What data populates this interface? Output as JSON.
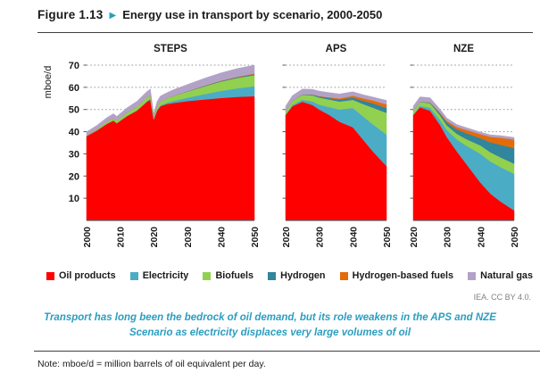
{
  "header": {
    "figure_label": "Figure 1.13",
    "arrow_icon": "▶",
    "title": "Energy use in transport by scenario, 2000-2050"
  },
  "colors": {
    "accent_teal": "#2B9EC0",
    "oil": "#FE0000",
    "electricity": "#4BACC6",
    "biofuels": "#92D050",
    "hydrogen": "#31859C",
    "hydrogen_based_fuels": "#E36C09",
    "natural_gas": "#B3A2C7",
    "gridline": "#969696",
    "axis": "#595959"
  },
  "legend": [
    {
      "label": "Oil products",
      "color": "#FE0000"
    },
    {
      "label": "Electricity",
      "color": "#4BACC6"
    },
    {
      "label": "Biofuels",
      "color": "#92D050"
    },
    {
      "label": "Hydrogen",
      "color": "#31859C"
    },
    {
      "label": "Hydrogen-based fuels",
      "color": "#E36C09"
    },
    {
      "label": "Natural gas",
      "color": "#B3A2C7"
    }
  ],
  "source": "IEA. CC BY 4.0.",
  "lede_lines": [
    "Transport has long been the bedrock of oil demand, but its role weakens in the APS and NZE",
    "Scenario as electricity displaces very large volumes of oil"
  ],
  "note": "Note: mboe/d = million barrels of oil equivalent per day.",
  "chart_data": [
    {
      "type": "area",
      "stacked": true,
      "title": "STEPS",
      "ylabel": "mboe/d",
      "ylim": [
        0,
        73
      ],
      "yticks": [
        10,
        20,
        30,
        40,
        50,
        60,
        70
      ],
      "xticks": [
        2000,
        2010,
        2020,
        2030,
        2040,
        2050
      ],
      "x": [
        2000,
        2003,
        2006,
        2008,
        2009,
        2012,
        2015,
        2018,
        2019,
        2020,
        2021,
        2022,
        2024,
        2026,
        2030,
        2035,
        2040,
        2045,
        2050
      ],
      "series": [
        {
          "name": "Oil products",
          "color": "#FE0000",
          "values": [
            38,
            40.5,
            43.5,
            45,
            43.8,
            47,
            49.5,
            53.5,
            54.5,
            45.5,
            49.5,
            51.5,
            52.5,
            53,
            53.8,
            54.5,
            55.2,
            55.7,
            56
          ]
        },
        {
          "name": "Electricity",
          "color": "#4BACC6",
          "values": [
            0.05,
            0.05,
            0.1,
            0.1,
            0.1,
            0.15,
            0.2,
            0.25,
            0.3,
            0.3,
            0.35,
            0.4,
            0.6,
            0.9,
            1.5,
            2.4,
            3.2,
            3.9,
            4.5
          ]
        },
        {
          "name": "Biofuels",
          "color": "#92D050",
          "values": [
            0.3,
            0.5,
            0.8,
            1,
            1.1,
            1.4,
            1.6,
            1.8,
            1.8,
            0.9,
            1.6,
            1.8,
            2,
            2.3,
            2.8,
            3.5,
            4.2,
            4.7,
            5
          ]
        },
        {
          "name": "Hydrogen",
          "color": "#31859C",
          "values": [
            0,
            0,
            0,
            0,
            0,
            0,
            0,
            0,
            0,
            0,
            0,
            0,
            0.02,
            0.05,
            0.1,
            0.2,
            0.25,
            0.3,
            0.4
          ]
        },
        {
          "name": "Hydrogen-based fuels",
          "color": "#E36C09",
          "values": [
            0,
            0,
            0,
            0,
            0,
            0,
            0,
            0,
            0,
            0,
            0,
            0,
            0,
            0.02,
            0.05,
            0.1,
            0.15,
            0.2,
            0.3
          ]
        },
        {
          "name": "Natural gas",
          "color": "#B3A2C7",
          "values": [
            1.6,
            1.7,
            1.9,
            2,
            1.9,
            2.2,
            2.4,
            2.6,
            2.6,
            1.4,
            2.2,
            2.4,
            2.5,
            2.7,
            3,
            3.3,
            3.5,
            3.7,
            3.8
          ]
        }
      ]
    },
    {
      "type": "area",
      "stacked": true,
      "title": "APS",
      "ylim": [
        0,
        73
      ],
      "yticks": [
        10,
        20,
        30,
        40,
        50,
        60,
        70
      ],
      "xticks": [
        2020,
        2030,
        2040,
        2050
      ],
      "x": [
        2020,
        2022,
        2025,
        2028,
        2030,
        2033,
        2036,
        2040,
        2043,
        2046,
        2050
      ],
      "series": [
        {
          "name": "Oil products",
          "color": "#FE0000",
          "values": [
            47.5,
            51.5,
            53.5,
            52,
            50,
            47.5,
            44.5,
            42,
            36.5,
            31,
            24.5
          ]
        },
        {
          "name": "Electricity",
          "color": "#4BACC6",
          "values": [
            0.3,
            0.5,
            0.9,
            1.6,
            2.2,
            3.6,
            5.5,
            8.7,
            10.5,
            12.3,
            14.2
          ]
        },
        {
          "name": "Biofuels",
          "color": "#92D050",
          "values": [
            1.5,
            1.9,
            2.3,
            2.8,
            3.2,
            3.4,
            3.6,
            3.7,
            5.5,
            7.5,
            9.8
          ]
        },
        {
          "name": "Hydrogen",
          "color": "#31859C",
          "values": [
            0,
            0.05,
            0.15,
            0.3,
            0.5,
            0.7,
            0.9,
            1,
            1.5,
            2,
            2.2
          ]
        },
        {
          "name": "Hydrogen-based fuels",
          "color": "#E36C09",
          "values": [
            0,
            0,
            0.05,
            0.1,
            0.2,
            0.3,
            0.5,
            0.8,
            1.1,
            1.3,
            1.6
          ]
        },
        {
          "name": "Natural gas",
          "color": "#B3A2C7",
          "values": [
            2.2,
            2.3,
            2.3,
            2.3,
            2.2,
            2.1,
            2,
            1.8,
            1.6,
            1.5,
            1.8
          ]
        }
      ]
    },
    {
      "type": "area",
      "stacked": true,
      "title": "NZE",
      "ylim": [
        0,
        73
      ],
      "yticks": [
        10,
        20,
        30,
        40,
        50,
        60,
        70
      ],
      "xticks": [
        2020,
        2030,
        2040,
        2050
      ],
      "x": [
        2020,
        2022,
        2025,
        2028,
        2030,
        2033,
        2036,
        2040,
        2043,
        2046,
        2050
      ],
      "series": [
        {
          "name": "Oil products",
          "color": "#FE0000",
          "values": [
            47.5,
            51,
            49.5,
            43,
            37.5,
            31,
            25,
            17,
            12,
            8.5,
            4.5
          ]
        },
        {
          "name": "Electricity",
          "color": "#4BACC6",
          "values": [
            0.3,
            0.6,
            1.3,
            2.2,
            3.2,
            5.5,
            8.5,
            13,
            14.5,
            15.5,
            16.5
          ]
        },
        {
          "name": "Biofuels",
          "color": "#92D050",
          "values": [
            1.5,
            1.8,
            2.1,
            2.1,
            2.1,
            2.5,
            3,
            3.8,
            4.2,
            4.4,
            4.6
          ]
        },
        {
          "name": "Hydrogen",
          "color": "#31859C",
          "values": [
            0,
            0.1,
            0.3,
            0.8,
            1.3,
            2,
            2.7,
            3.3,
            4.5,
            5.7,
            7
          ]
        },
        {
          "name": "Hydrogen-based fuels",
          "color": "#E36C09",
          "values": [
            0,
            0,
            0.1,
            0.4,
            0.7,
            1.1,
            1.5,
            1.8,
            2.5,
            3.2,
            3.9
          ]
        },
        {
          "name": "Natural gas",
          "color": "#B3A2C7",
          "values": [
            2.2,
            2.2,
            2,
            1.6,
            1.3,
            1.1,
            1,
            0.9,
            0.9,
            0.9,
            0.9
          ]
        }
      ]
    }
  ]
}
